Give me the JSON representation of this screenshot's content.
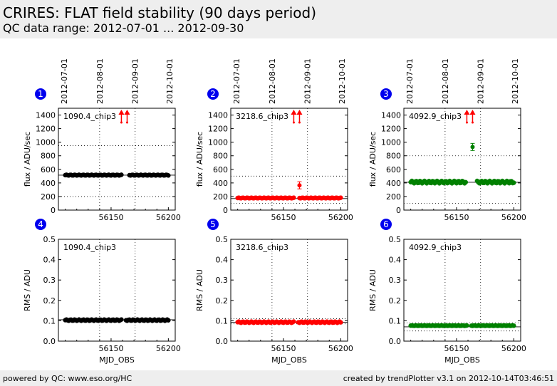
{
  "header": {
    "title": "CRIRES: FLAT field stability (90 days period)",
    "subtitle": "QC data range: 2012-07-01 ... 2012-09-30"
  },
  "footer": {
    "left": "powered by QC: www.eso.org/HC",
    "right": "created by trendPlotter v3.1 on 2012-10-14T03:46:51"
  },
  "colors": {
    "black": "#000000",
    "red": "#ff0000",
    "green": "#008000",
    "badge": "#0000ee"
  },
  "date_ticks": [
    {
      "label": "2012-07-01",
      "mjd": 56109
    },
    {
      "label": "2012-08-01",
      "mjd": 56140
    },
    {
      "label": "2012-09-01",
      "mjd": 56171
    },
    {
      "label": "2012-10-01",
      "mjd": 56201
    }
  ],
  "chart_data": [
    {
      "panel": "1",
      "type": "scatter",
      "label": "1090.4_chip3",
      "color": "#000000",
      "ylabel": "flux / ADU/sec",
      "xlim": [
        56104,
        56206
      ],
      "ylim": [
        0,
        1500
      ],
      "yticks": [
        0,
        200,
        400,
        600,
        800,
        1000,
        1200,
        1400
      ],
      "xticks": [
        56150,
        56200
      ],
      "ref_line": 515,
      "limits": [
        200,
        950
      ],
      "gaps": [
        [
          56159,
          56166
        ]
      ],
      "y": 515,
      "y_jitter": 5,
      "outliers": [],
      "arrows": [
        56159,
        56164
      ]
    },
    {
      "panel": "2",
      "type": "scatter",
      "label": "3218.6_chip3",
      "color": "#ff0000",
      "ylabel": "flux / ADU/sec",
      "xlim": [
        56104,
        56206
      ],
      "ylim": [
        0,
        1500
      ],
      "yticks": [
        0,
        200,
        400,
        600,
        800,
        1000,
        1200,
        1400
      ],
      "xticks": [
        56150,
        56200
      ],
      "ref_line": 170,
      "limits": [
        100,
        500
      ],
      "gaps": [
        [
          56159,
          56164
        ]
      ],
      "y": 178,
      "y_jitter": 4,
      "outliers": [
        {
          "x": 56164,
          "y": 365
        }
      ],
      "arrows": [
        56159,
        56164
      ]
    },
    {
      "panel": "3",
      "type": "scatter",
      "label": "4092.9_chip3",
      "color": "#008000",
      "ylabel": "flux / ADU/sec",
      "xlim": [
        56104,
        56206
      ],
      "ylim": [
        0,
        1500
      ],
      "yticks": [
        0,
        200,
        400,
        600,
        800,
        1000,
        1200,
        1400
      ],
      "xticks": [
        56150,
        56200
      ],
      "ref_line": 410,
      "limits": [
        100,
        800
      ],
      "gaps": [
        [
          56158,
          56168
        ]
      ],
      "y": 412,
      "y_jitter": 18,
      "outliers": [
        {
          "x": 56164,
          "y": 930
        }
      ],
      "arrows": [
        56159,
        56164
      ]
    },
    {
      "panel": "4",
      "type": "scatter",
      "label": "1090.4_chip3",
      "color": "#000000",
      "ylabel": "RMS / ADU",
      "xlabel": "MJD_OBS",
      "xlim": [
        56104,
        56206
      ],
      "ylim": [
        0,
        0.5
      ],
      "yticks": [
        0.0,
        0.1,
        0.2,
        0.3,
        0.4,
        0.5
      ],
      "xticks": [
        56150,
        56200
      ],
      "ref_line": 0.105,
      "limits": [],
      "gaps": [
        [
          56159,
          56163
        ]
      ],
      "y": 0.103,
      "y_jitter": 0.003,
      "outliers": [],
      "arrows": []
    },
    {
      "panel": "5",
      "type": "scatter",
      "label": "3218.6_chip3",
      "color": "#ff0000",
      "ylabel": "RMS / ADU",
      "xlabel": "MJD_OBS",
      "xlim": [
        56104,
        56206
      ],
      "ylim": [
        0,
        0.5
      ],
      "yticks": [
        0.0,
        0.1,
        0.2,
        0.3,
        0.4,
        0.5
      ],
      "xticks": [
        56150,
        56200
      ],
      "ref_line": 0.092,
      "limits": [
        0.085,
        0.11
      ],
      "gaps": [
        [
          56159,
          56163
        ]
      ],
      "y": 0.093,
      "y_jitter": 0.003,
      "outliers": [],
      "arrows": []
    },
    {
      "panel": "6",
      "type": "scatter",
      "label": "4092.9_chip3",
      "color": "#008000",
      "ylabel": "RMS / ADU",
      "xlabel": "MJD_OBS",
      "xlim": [
        56104,
        56206
      ],
      "ylim": [
        0,
        0.5
      ],
      "yticks": [
        0.0,
        0.1,
        0.2,
        0.3,
        0.4,
        0.5
      ],
      "xticks": [
        56150,
        56200
      ],
      "ref_line": 0.07,
      "limits": [
        0.05,
        0.09
      ],
      "gaps": [
        [
          56159,
          56163
        ]
      ],
      "y": 0.076,
      "y_jitter": 0.001,
      "outliers": [],
      "arrows": []
    }
  ]
}
